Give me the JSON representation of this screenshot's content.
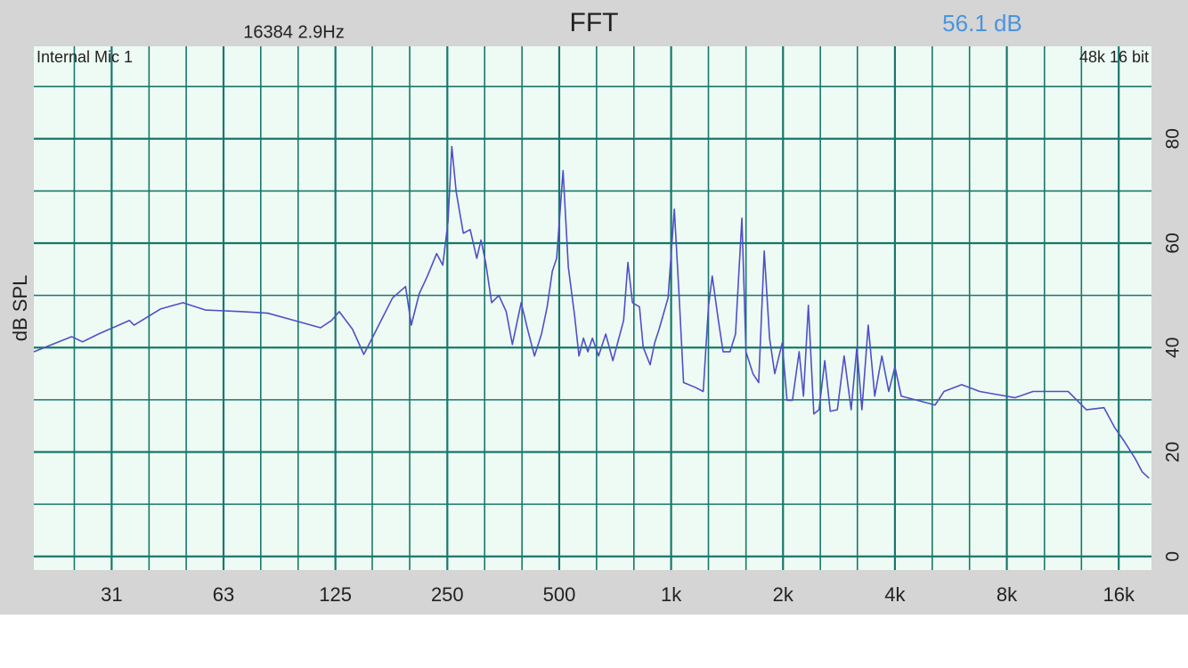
{
  "chart_data": {
    "type": "line",
    "title": "FFT",
    "fft_info": "16384  2.9Hz",
    "level": "56.1 dB",
    "input": "Internal Mic 1",
    "format": "48k 16 bit",
    "ylabel": "dB SPL",
    "x_log": true,
    "grid": true,
    "color": "#4f4fc9",
    "grid_color": "#17786a",
    "xlim": [
      19.3,
      19600
    ],
    "ylim": [
      -2.6,
      97.7
    ],
    "xticks": [
      {
        "value": 31.25,
        "label": "31"
      },
      {
        "value": 62.5,
        "label": "63"
      },
      125,
      250,
      500,
      {
        "value": 1000,
        "label": "1k"
      },
      {
        "value": 2000,
        "label": "2k"
      },
      {
        "value": 4000,
        "label": "4k"
      },
      {
        "value": 8000,
        "label": "8k"
      },
      {
        "value": 16000,
        "label": "16k"
      }
    ],
    "xminorticks": [
      24.8,
      39.4,
      49.6,
      78.7,
      99.2,
      157,
      198,
      315,
      397,
      630,
      794,
      1260,
      1590,
      2520,
      3170,
      5040,
      6350,
      10100,
      12700
    ],
    "yticks": [
      0,
      20,
      40,
      60,
      80
    ],
    "yminorticks": [
      10,
      30,
      50,
      70,
      90
    ],
    "x": [
      19.3,
      24.4,
      26.1,
      28.8,
      34.9,
      35.9,
      42.3,
      48.6,
      55.8,
      69.5,
      82.1,
      96.8,
      114,
      122,
      128,
      139,
      149,
      159,
      178,
      193,
      200,
      210,
      221,
      234,
      243,
      251,
      257,
      264,
      276,
      288,
      300,
      308,
      317,
      329,
      344,
      360,
      374,
      395,
      411,
      429,
      448,
      464,
      479,
      492,
      512,
      529,
      550,
      565,
      581,
      597,
      614,
      638,
      667,
      697,
      745,
      765,
      787,
      822,
      841,
      878,
      903,
      928,
      981,
      1020,
      1050,
      1080,
      1160,
      1220,
      1260,
      1290,
      1340,
      1380,
      1440,
      1490,
      1550,
      1590,
      1660,
      1720,
      1780,
      1840,
      1900,
      1990,
      2050,
      2120,
      2210,
      2270,
      2340,
      2420,
      2500,
      2590,
      2680,
      2800,
      2920,
      3050,
      3160,
      3260,
      3390,
      3530,
      3690,
      3850,
      4000,
      4160,
      4600,
      5130,
      5420,
      6050,
      6760,
      7540,
      8420,
      9410,
      10500,
      11700,
      13100,
      14600,
      15600,
      16500,
      17700,
      18500,
      19300
    ],
    "values": [
      39.2,
      42.1,
      41.1,
      42.6,
      45.2,
      44.3,
      47.4,
      48.6,
      47.2,
      46.9,
      46.6,
      45.2,
      43.8,
      45.2,
      46.9,
      43.5,
      38.7,
      42.6,
      49.5,
      51.7,
      44.3,
      50.3,
      53.7,
      58.0,
      55.8,
      64.0,
      78.5,
      69.9,
      61.9,
      62.6,
      57.1,
      60.6,
      56.3,
      48.6,
      50.0,
      46.9,
      40.6,
      48.6,
      43.5,
      38.4,
      42.6,
      47.8,
      54.6,
      57.1,
      73.9,
      55.4,
      46.1,
      38.4,
      41.8,
      39.2,
      41.8,
      38.4,
      42.6,
      37.5,
      45.2,
      56.3,
      48.6,
      47.8,
      40.1,
      36.7,
      40.9,
      43.5,
      49.5,
      66.5,
      50.3,
      33.3,
      32.4,
      31.6,
      47.8,
      53.7,
      45.2,
      39.2,
      39.2,
      42.6,
      64.8,
      39.2,
      35.0,
      33.3,
      58.5,
      41.8,
      35.0,
      40.9,
      29.9,
      29.9,
      39.2,
      30.7,
      48.1,
      27.3,
      28.1,
      37.5,
      27.8,
      28.1,
      38.4,
      28.1,
      40.1,
      28.1,
      44.3,
      30.7,
      38.4,
      31.6,
      36.3,
      30.7,
      29.9,
      29.0,
      31.6,
      32.9,
      31.6,
      31.0,
      30.4,
      31.6,
      31.6,
      31.6,
      28.1,
      28.5,
      24.7,
      22.2,
      18.8,
      16.2,
      15.0
    ]
  }
}
